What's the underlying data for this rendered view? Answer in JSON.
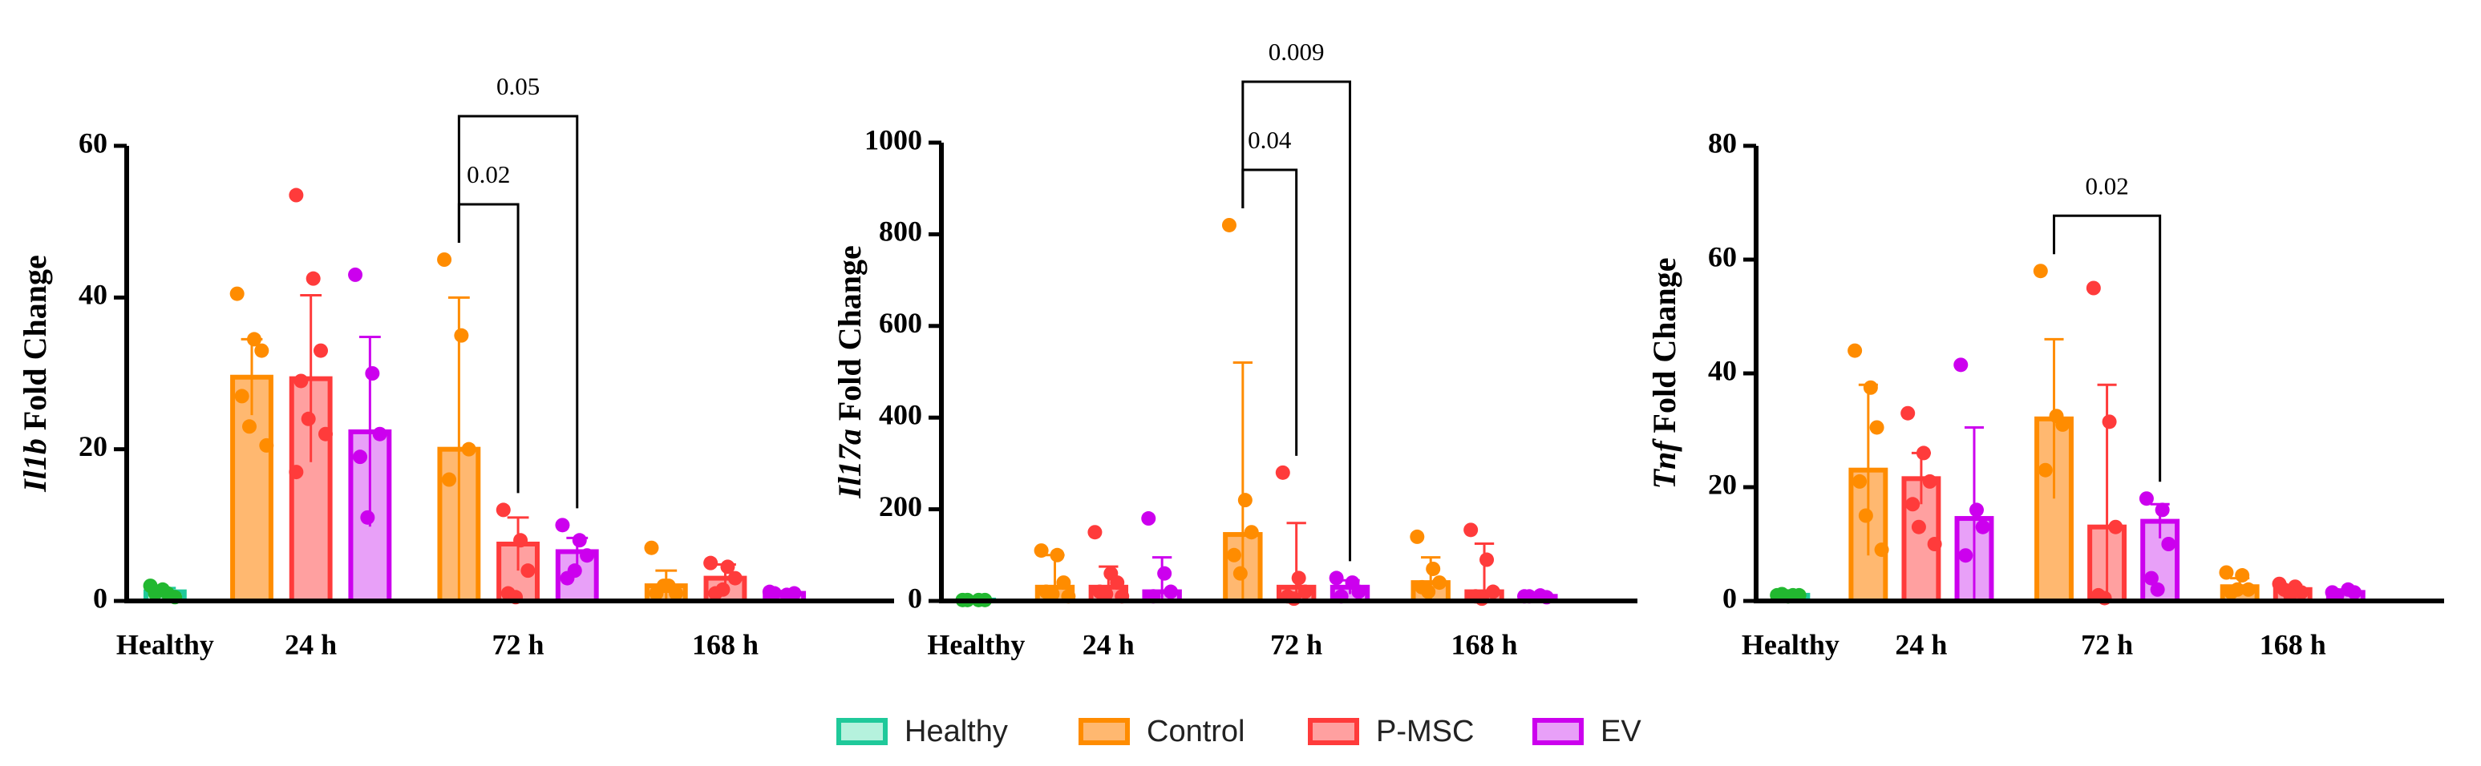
{
  "chart_data": [
    {
      "type": "bar",
      "ylabel_gene": "Il1b",
      "ylabel": "Fold Change",
      "categories": [
        "Healthy",
        "24 h",
        "72 h",
        "168 h"
      ],
      "ylim": [
        0,
        60
      ],
      "yticks": [
        0,
        20,
        40,
        60
      ],
      "series": [
        {
          "name": "Healthy",
          "color": "#1fc99a",
          "fill": "#b5f2dd",
          "point_color": "#22b830",
          "values": [
            1.2,
            null,
            null,
            null
          ],
          "errors": [
            0.5,
            null,
            null,
            null
          ],
          "points": [
            [
              2,
              1,
              0.5,
              1,
              1.5
            ],
            null,
            null,
            null
          ]
        },
        {
          "name": "Control",
          "color": "#ff8c00",
          "fill": "#ffb870",
          "point_color": "#ff8c00",
          "values": [
            null,
            29.5,
            20,
            2
          ],
          "errors": [
            null,
            5,
            20,
            2
          ],
          "points": [
            null,
            [
              40.5,
              34.5,
              33,
              27,
              23,
              20.5
            ],
            [
              45,
              35,
              20,
              16
            ],
            [
              7,
              2,
              1,
              1,
              2
            ]
          ]
        },
        {
          "name": "P-MSC",
          "color": "#ff3b3b",
          "fill": "#ffa0a0",
          "point_color": "#ff3b3b",
          "values": [
            null,
            29.3,
            7.5,
            3
          ],
          "errors": [
            null,
            11,
            3.5,
            1.8
          ],
          "points": [
            null,
            [
              53.5,
              42.5,
              33,
              29,
              24,
              22,
              17
            ],
            [
              12,
              8,
              4,
              1,
              0.5
            ],
            [
              5,
              4.5,
              3,
              1,
              1.5
            ]
          ]
        },
        {
          "name": "EV",
          "color": "#cc00ee",
          "fill": "#e8a0f8",
          "point_color": "#cc00ee",
          "values": [
            null,
            22.3,
            6.5,
            1
          ],
          "errors": [
            null,
            12.5,
            1.8,
            0.3
          ],
          "points": [
            null,
            [
              43,
              30,
              22,
              19,
              11
            ],
            [
              10,
              8,
              6,
              3,
              4
            ],
            [
              1.2,
              0.8,
              1,
              1
            ]
          ]
        }
      ],
      "annotations": [
        {
          "text": "0.02",
          "category": "72 h",
          "from": "Control",
          "to": "P-MSC"
        },
        {
          "text": "0.05",
          "category": "72 h",
          "from": "Control",
          "to": "EV"
        }
      ]
    },
    {
      "type": "bar",
      "ylabel_gene": "Il17a",
      "ylabel": "Fold Change",
      "categories": [
        "Healthy",
        "24 h",
        "72 h",
        "168 h"
      ],
      "ylim": [
        0,
        1000
      ],
      "yticks": [
        0,
        200,
        400,
        600,
        800,
        1000
      ],
      "series": [
        {
          "name": "Healthy",
          "color": "#1fc99a",
          "fill": "#b5f2dd",
          "point_color": "#22b830",
          "values": [
            2,
            null,
            null,
            null
          ],
          "errors": [
            1,
            null,
            null,
            null
          ],
          "points": [
            [
              2,
              2,
              2,
              2
            ],
            null,
            null,
            null
          ]
        },
        {
          "name": "Control",
          "color": "#ff8c00",
          "fill": "#ffb870",
          "point_color": "#ff8c00",
          "values": [
            null,
            30,
            145,
            40
          ],
          "errors": [
            null,
            70,
            375,
            55
          ],
          "points": [
            null,
            [
              110,
              100,
              40,
              20,
              15,
              10
            ],
            [
              820,
              220,
              150,
              100,
              60
            ],
            [
              140,
              70,
              40,
              30,
              20
            ]
          ]
        },
        {
          "name": "P-MSC",
          "color": "#ff3b3b",
          "fill": "#ffa0a0",
          "point_color": "#ff3b3b",
          "values": [
            null,
            30,
            30,
            20
          ],
          "errors": [
            null,
            45,
            140,
            105
          ],
          "points": [
            null,
            [
              150,
              60,
              40,
              20,
              15,
              10
            ],
            [
              280,
              50,
              20,
              10,
              5
            ],
            [
              155,
              90,
              20,
              10,
              5
            ]
          ]
        },
        {
          "name": "EV",
          "color": "#cc00ee",
          "fill": "#e8a0f8",
          "point_color": "#cc00ee",
          "values": [
            null,
            20,
            30,
            10
          ],
          "errors": [
            null,
            75,
            15,
            3
          ],
          "points": [
            null,
            [
              180,
              60,
              20,
              10
            ],
            [
              50,
              40,
              20,
              10
            ],
            [
              10,
              12,
              8,
              10
            ]
          ]
        }
      ],
      "annotations": [
        {
          "text": "0.04",
          "category": "72 h",
          "from": "Control",
          "to": "P-MSC"
        },
        {
          "text": "0.009",
          "category": "72 h",
          "from": "Control",
          "to": "EV"
        }
      ]
    },
    {
      "type": "bar",
      "ylabel_gene": "Tnf",
      "ylabel": "Fold Change",
      "categories": [
        "Healthy",
        "24 h",
        "72 h",
        "168 h"
      ],
      "ylim": [
        0,
        80
      ],
      "yticks": [
        0,
        20,
        40,
        60,
        80
      ],
      "series": [
        {
          "name": "Healthy",
          "color": "#1fc99a",
          "fill": "#b5f2dd",
          "point_color": "#22b830",
          "values": [
            1,
            null,
            null,
            null
          ],
          "errors": [
            0.3,
            null,
            null,
            null
          ],
          "points": [
            [
              1,
              1,
              1,
              1.2,
              0.8
            ],
            null,
            null,
            null
          ]
        },
        {
          "name": "Control",
          "color": "#ff8c00",
          "fill": "#ffb870",
          "point_color": "#ff8c00",
          "values": [
            null,
            23,
            32,
            2.5
          ],
          "errors": [
            null,
            15,
            14,
            1.5
          ],
          "points": [
            null,
            [
              44,
              37.5,
              30.5,
              21,
              15,
              9
            ],
            [
              58,
              32.5,
              31,
              23
            ],
            [
              5,
              4.5,
              2,
              1.5,
              2
            ]
          ]
        },
        {
          "name": "P-MSC",
          "color": "#ff3b3b",
          "fill": "#ffa0a0",
          "point_color": "#ff3b3b",
          "values": [
            null,
            21.5,
            13,
            2
          ],
          "errors": [
            null,
            4.5,
            25,
            0.8
          ],
          "points": [
            null,
            [
              33,
              26,
              21,
              17,
              13,
              10
            ],
            [
              55,
              31.5,
              13,
              1,
              0.5
            ],
            [
              3,
              2.5,
              1.5,
              2,
              1
            ]
          ]
        },
        {
          "name": "EV",
          "color": "#cc00ee",
          "fill": "#e8a0f8",
          "point_color": "#cc00ee",
          "values": [
            null,
            14.5,
            14,
            1.5
          ],
          "errors": [
            null,
            16,
            3,
            0.5
          ],
          "points": [
            null,
            [
              41.5,
              16,
              13,
              8
            ],
            [
              18,
              16,
              10,
              4,
              2
            ],
            [
              1.5,
              2,
              1.5,
              1
            ]
          ]
        }
      ],
      "annotations": [
        {
          "text": "0.02",
          "category": "72 h",
          "from": "Control",
          "to": "EV"
        }
      ]
    }
  ]
}
